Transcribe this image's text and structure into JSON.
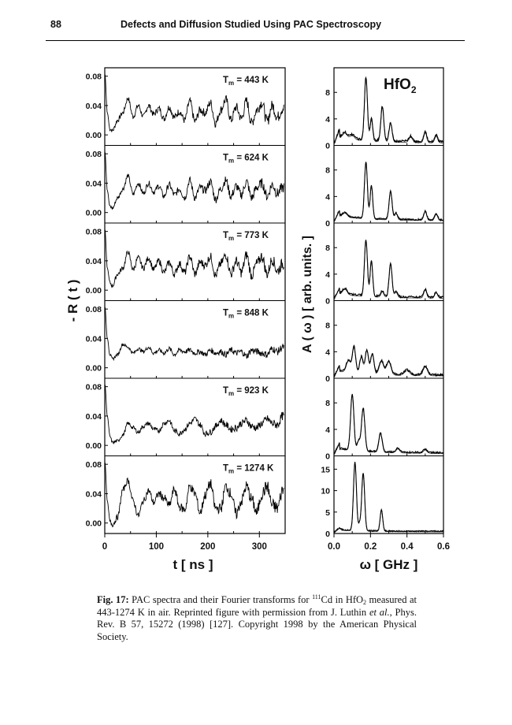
{
  "header": {
    "page_number": "88",
    "running_title": "Defects and Diffusion Studied Using PAC Spectroscopy"
  },
  "chart_data": [
    {
      "type": "line",
      "name": "time-domain R(t) spectra",
      "xlabel": "t [ ns ]",
      "ylabel": "- R ( t )",
      "xlim": [
        0,
        350
      ],
      "x_ticks": [
        "0",
        "100",
        "200",
        "300"
      ],
      "ylim": [
        -0.01,
        0.085
      ],
      "y_ticks": [
        "0.00",
        "0.04",
        "0.08"
      ],
      "series": [
        {
          "name": "Tm = 443 K",
          "label_main": "T",
          "label_sub": "m",
          "label_rest": " = 443 K",
          "t": [
            0,
            5,
            10,
            15,
            25,
            35,
            45,
            55,
            65,
            75,
            85,
            95,
            105,
            115,
            125,
            135,
            145,
            155,
            165,
            175,
            185,
            195,
            205,
            215,
            225,
            235,
            245,
            255,
            265,
            275,
            285,
            295,
            305,
            315,
            325,
            335,
            345
          ],
          "values": [
            0.085,
            0.03,
            0.008,
            0.006,
            0.02,
            0.03,
            0.05,
            0.025,
            0.04,
            0.025,
            0.04,
            0.028,
            0.036,
            0.022,
            0.038,
            0.024,
            0.032,
            0.02,
            0.046,
            0.018,
            0.034,
            0.03,
            0.044,
            0.016,
            0.034,
            0.048,
            0.02,
            0.038,
            0.022,
            0.046,
            0.016,
            0.034,
            0.044,
            0.018,
            0.04,
            0.024,
            0.036
          ],
          "noise": 0.0055
        },
        {
          "name": "Tm = 624 K",
          "label_main": "T",
          "label_sub": "m",
          "label_rest": " = 624 K",
          "t": [
            0,
            5,
            10,
            15,
            25,
            35,
            45,
            55,
            65,
            75,
            85,
            95,
            105,
            115,
            125,
            135,
            145,
            155,
            165,
            175,
            185,
            195,
            205,
            215,
            225,
            235,
            245,
            255,
            265,
            275,
            285,
            295,
            305,
            315,
            325,
            335,
            345
          ],
          "values": [
            0.085,
            0.03,
            0.008,
            0.006,
            0.02,
            0.032,
            0.05,
            0.025,
            0.04,
            0.026,
            0.04,
            0.028,
            0.036,
            0.022,
            0.038,
            0.024,
            0.032,
            0.02,
            0.044,
            0.02,
            0.034,
            0.03,
            0.042,
            0.018,
            0.032,
            0.044,
            0.022,
            0.036,
            0.024,
            0.042,
            0.02,
            0.034,
            0.04,
            0.022,
            0.038,
            0.026,
            0.034
          ],
          "noise": 0.005
        },
        {
          "name": "Tm = 773 K",
          "label_main": "T",
          "label_sub": "m",
          "label_rest": " = 773 K",
          "t": [
            0,
            5,
            10,
            15,
            25,
            35,
            45,
            55,
            65,
            75,
            85,
            95,
            105,
            115,
            125,
            135,
            145,
            155,
            165,
            175,
            185,
            195,
            205,
            215,
            225,
            235,
            245,
            255,
            265,
            275,
            285,
            295,
            305,
            315,
            325,
            335,
            345
          ],
          "values": [
            0.085,
            0.03,
            0.01,
            0.006,
            0.022,
            0.03,
            0.052,
            0.028,
            0.044,
            0.03,
            0.044,
            0.028,
            0.04,
            0.024,
            0.038,
            0.022,
            0.036,
            0.024,
            0.046,
            0.022,
            0.038,
            0.034,
            0.046,
            0.02,
            0.036,
            0.048,
            0.022,
            0.04,
            0.024,
            0.048,
            0.02,
            0.036,
            0.046,
            0.022,
            0.042,
            0.026,
            0.036
          ],
          "noise": 0.0055
        },
        {
          "name": "Tm = 848 K",
          "label_main": "T",
          "label_sub": "m",
          "label_rest": " = 848 K",
          "t": [
            0,
            5,
            10,
            15,
            25,
            35,
            45,
            55,
            65,
            75,
            85,
            95,
            105,
            115,
            125,
            135,
            145,
            155,
            165,
            175,
            185,
            195,
            205,
            215,
            225,
            235,
            245,
            255,
            265,
            275,
            285,
            295,
            305,
            315,
            325,
            335,
            345
          ],
          "values": [
            0.085,
            0.04,
            0.018,
            0.012,
            0.018,
            0.032,
            0.028,
            0.02,
            0.026,
            0.022,
            0.028,
            0.02,
            0.024,
            0.02,
            0.026,
            0.018,
            0.024,
            0.022,
            0.024,
            0.02,
            0.022,
            0.018,
            0.024,
            0.02,
            0.022,
            0.018,
            0.024,
            0.02,
            0.022,
            0.016,
            0.024,
            0.022,
            0.02,
            0.018,
            0.026,
            0.022,
            0.028
          ],
          "noise": 0.0035
        },
        {
          "name": "Tm = 923 K",
          "label_main": "T",
          "label_sub": "m",
          "label_rest": " = 923 K",
          "t": [
            0,
            5,
            10,
            15,
            25,
            35,
            45,
            55,
            65,
            75,
            85,
            95,
            105,
            115,
            125,
            135,
            145,
            155,
            165,
            175,
            185,
            195,
            205,
            215,
            225,
            235,
            245,
            255,
            265,
            275,
            285,
            295,
            305,
            315,
            325,
            335,
            345
          ],
          "values": [
            0.085,
            0.04,
            0.012,
            0.004,
            0.006,
            0.014,
            0.03,
            0.024,
            0.018,
            0.026,
            0.03,
            0.022,
            0.02,
            0.03,
            0.034,
            0.02,
            0.016,
            0.022,
            0.03,
            0.036,
            0.028,
            0.016,
            0.018,
            0.026,
            0.034,
            0.028,
            0.022,
            0.024,
            0.03,
            0.034,
            0.026,
            0.024,
            0.03,
            0.036,
            0.03,
            0.028,
            0.04
          ],
          "noise": 0.004
        },
        {
          "name": "Tm = 1274 K",
          "label_main": "T",
          "label_sub": "m",
          "label_rest": " = 1274 K",
          "t": [
            0,
            5,
            10,
            15,
            25,
            35,
            45,
            55,
            65,
            75,
            85,
            95,
            105,
            115,
            125,
            135,
            145,
            155,
            165,
            175,
            185,
            195,
            205,
            215,
            225,
            235,
            245,
            255,
            265,
            275,
            285,
            295,
            305,
            315,
            325,
            335,
            345
          ],
          "values": [
            0.085,
            0.03,
            0.002,
            -0.002,
            0.008,
            0.045,
            0.058,
            0.03,
            0.01,
            0.03,
            0.044,
            0.028,
            0.04,
            0.034,
            0.024,
            0.046,
            0.022,
            0.018,
            0.05,
            0.04,
            0.014,
            0.038,
            0.054,
            0.02,
            0.02,
            0.05,
            0.04,
            0.012,
            0.03,
            0.05,
            0.032,
            0.014,
            0.04,
            0.05,
            0.024,
            0.02,
            0.045
          ],
          "noise": 0.0065
        }
      ]
    },
    {
      "type": "line",
      "name": "Fourier transforms A(omega)",
      "title_main": "HfO",
      "title_sub": "2",
      "xlabel": "ω [ GHz ]",
      "ylabel": "A ( ω ) [ arb. units. ]",
      "xlim": [
        0,
        0.6
      ],
      "x_ticks": [
        "0.0",
        "0.2",
        "0.4",
        "0.6"
      ],
      "panels": [
        {
          "ylim": [
            0,
            11
          ],
          "y_ticks": [
            "0",
            "4",
            "8"
          ],
          "peaks": [
            [
              0.06,
              0.8,
              0.012
            ],
            [
              0.1,
              0.6,
              0.012
            ],
            [
              0.175,
              9.5,
              0.008
            ],
            [
              0.205,
              3.2,
              0.007
            ],
            [
              0.265,
              5.2,
              0.008
            ],
            [
              0.31,
              2.8,
              0.008
            ],
            [
              0.42,
              0.8,
              0.01
            ],
            [
              0.5,
              1.5,
              0.008
            ],
            [
              0.56,
              1.0,
              0.008
            ]
          ],
          "base": 1.0,
          "noise": 0.35
        },
        {
          "ylim": [
            0,
            11
          ],
          "y_ticks": [
            "0",
            "4",
            "8"
          ],
          "peaks": [
            [
              0.06,
              0.6,
              0.012
            ],
            [
              0.175,
              8.5,
              0.008
            ],
            [
              0.205,
              5.0,
              0.007
            ],
            [
              0.31,
              4.2,
              0.008
            ],
            [
              0.34,
              1.0,
              0.008
            ],
            [
              0.5,
              1.3,
              0.008
            ],
            [
              0.56,
              0.9,
              0.008
            ]
          ],
          "base": 0.8,
          "noise": 0.25
        },
        {
          "ylim": [
            0,
            11
          ],
          "y_ticks": [
            "0",
            "4",
            "8"
          ],
          "peaks": [
            [
              0.06,
              0.8,
              0.012
            ],
            [
              0.175,
              8.5,
              0.008
            ],
            [
              0.205,
              5.3,
              0.007
            ],
            [
              0.265,
              0.8,
              0.008
            ],
            [
              0.31,
              5.0,
              0.008
            ],
            [
              0.34,
              0.8,
              0.008
            ],
            [
              0.5,
              1.2,
              0.008
            ],
            [
              0.56,
              0.8,
              0.008
            ]
          ],
          "base": 0.8,
          "noise": 0.3
        },
        {
          "ylim": [
            0,
            11
          ],
          "y_ticks": [
            "0",
            "4",
            "8"
          ],
          "peaks": [
            [
              0.08,
              1.8,
              0.012
            ],
            [
              0.11,
              3.8,
              0.009
            ],
            [
              0.15,
              2.5,
              0.009
            ],
            [
              0.18,
              3.5,
              0.009
            ],
            [
              0.21,
              3.0,
              0.009
            ],
            [
              0.26,
              2.0,
              0.012
            ],
            [
              0.3,
              2.0,
              0.012
            ],
            [
              0.4,
              0.7,
              0.015
            ],
            [
              0.5,
              1.3,
              0.012
            ]
          ],
          "base": 0.8,
          "noise": 0.3
        },
        {
          "ylim": [
            0,
            11
          ],
          "y_ticks": [
            "0",
            "4",
            "8"
          ],
          "peaks": [
            [
              0.1,
              8.5,
              0.009
            ],
            [
              0.135,
              1.5,
              0.008
            ],
            [
              0.16,
              6.5,
              0.009
            ],
            [
              0.255,
              2.8,
              0.009
            ],
            [
              0.35,
              0.6,
              0.01
            ],
            [
              0.5,
              0.5,
              0.01
            ]
          ],
          "base": 0.8,
          "noise": 0.25
        },
        {
          "ylim": [
            0,
            17
          ],
          "y_ticks": [
            "0",
            "5",
            "10",
            "15"
          ],
          "peaks": [
            [
              0.115,
              16.0,
              0.008
            ],
            [
              0.14,
              1.5,
              0.006
            ],
            [
              0.16,
              13.5,
              0.008
            ],
            [
              0.26,
              5.0,
              0.007
            ],
            [
              0.02,
              1.0,
              0.01
            ]
          ],
          "base": 0.5,
          "noise": 0.3
        }
      ]
    }
  ],
  "caption": {
    "label": "Fig. 17:",
    "text_1": " PAC spectra and their Fourier transforms for ",
    "isotope_mass": "111",
    "text_2": "Cd in HfO",
    "subscript": "2",
    "text_3": " measured at 443-1274 K in air. Reprinted figure with permission from J. Luthin ",
    "et_al": "et al.",
    "text_4": ", Phys. Rev. B 57, 15272 (1998) [127]. Copyright 1998 by the American Physical Society."
  }
}
